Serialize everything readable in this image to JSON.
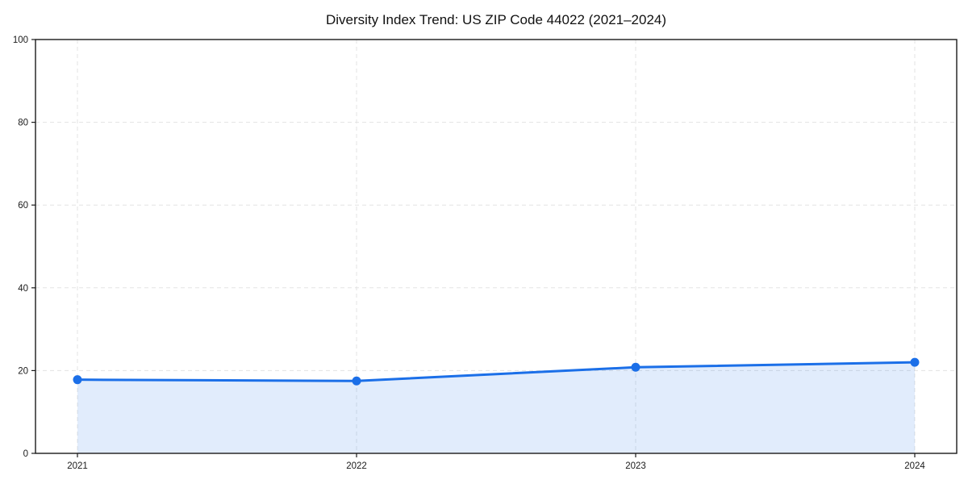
{
  "figure": {
    "background": "#ffffff"
  },
  "chart_data": {
    "type": "area",
    "title": "Diversity Index Trend: US ZIP Code 44022 (2021–2024)",
    "categories": [
      "2021",
      "2022",
      "2023",
      "2024"
    ],
    "series": [
      {
        "name": "Diversity Index",
        "values": [
          17.8,
          17.5,
          20.8,
          22.0
        ]
      }
    ],
    "xlabel": "",
    "ylabel": "",
    "ylim": [
      0,
      100
    ],
    "yticks": [
      0,
      20,
      40,
      60,
      80,
      100
    ],
    "grid": "dashed-both-axes",
    "legend": "none",
    "colors": {
      "line": "#1b6fe8",
      "marker": "#1b6fe8",
      "fill": "rgba(27,111,232,0.13)",
      "grid": "#e3e3e3",
      "axis": "#1a1a1a",
      "tick_label": "#1a1a1a",
      "title": "#111111",
      "plot_background": "#ffffff"
    }
  }
}
